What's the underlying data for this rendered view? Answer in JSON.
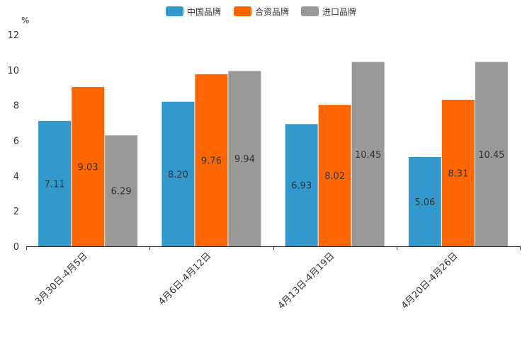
{
  "chart_data": {
    "type": "bar",
    "title": "",
    "xlabel": "",
    "ylabel": "%",
    "ylim": [
      0,
      12
    ],
    "yticks": [
      0,
      2,
      4,
      6,
      8,
      10,
      12
    ],
    "legend_position": "top",
    "grid": false,
    "categories": [
      "3月30日-4月5日",
      "4月6日-4月12日",
      "4月13日-4月19日",
      "4月20日-4月26日"
    ],
    "series": [
      {
        "name": "中国品牌",
        "color": "#3399cc",
        "values": [
          7.11,
          8.2,
          6.93,
          5.06
        ],
        "labels": [
          "7.11",
          "8.20",
          "6.93",
          "5.06"
        ]
      },
      {
        "name": "合资品牌",
        "color": "#ff6600",
        "values": [
          9.03,
          9.76,
          8.02,
          8.31
        ],
        "labels": [
          "9.03",
          "9.76",
          "8.02",
          "8.31"
        ]
      },
      {
        "name": "进口品牌",
        "color": "#999999",
        "values": [
          6.29,
          9.94,
          10.45,
          10.45
        ],
        "labels": [
          "6.29",
          "9.94",
          "10.45",
          "10.45"
        ]
      }
    ]
  }
}
